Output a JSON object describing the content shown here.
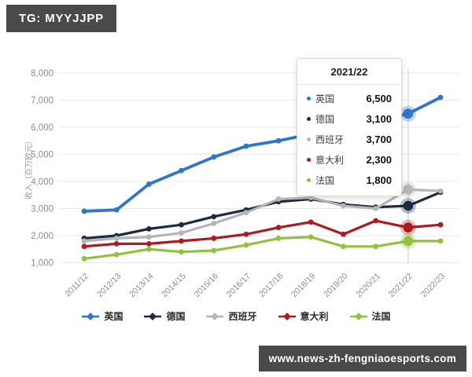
{
  "badge": {
    "text": "TG: MYYJJPP"
  },
  "watermark": {
    "text": "www.news-zh-fengniaoesports.com"
  },
  "tooltip": {
    "title": "2021/22",
    "rows": [
      {
        "label": "英国",
        "value": "6,500"
      },
      {
        "label": "德国",
        "value": "3,100"
      },
      {
        "label": "西班牙",
        "value": "3,700"
      },
      {
        "label": "意大利",
        "value": "2,300"
      },
      {
        "label": "法国",
        "value": "1,800"
      }
    ]
  },
  "chart_data": {
    "type": "line",
    "title": "",
    "xlabel": "",
    "ylabel": "收入（百万欧元）",
    "ylim": [
      1000,
      8000
    ],
    "grid": true,
    "legend_position": "bottom",
    "hover_category": "2021/22",
    "categories": [
      "2011/12",
      "2012/13",
      "2013/14",
      "2014/15",
      "2015/16",
      "2016/17",
      "2017/18",
      "2018/19",
      "2019/20",
      "2020/21",
      "2021/22",
      "2022/23"
    ],
    "yticks": [
      1000,
      2000,
      3000,
      4000,
      5000,
      6000,
      7000,
      8000
    ],
    "ytick_labels": [
      "1,000",
      "2,000",
      "3,000",
      "4,000",
      "5,000",
      "6,000",
      "7,000",
      "8,000"
    ],
    "series": [
      {
        "name": "英国",
        "color": "#2e75cb",
        "values": [
          2900,
          2950,
          3900,
          4400,
          4900,
          5300,
          5500,
          5750,
          6000,
          6250,
          6500,
          7100
        ]
      },
      {
        "name": "德国",
        "color": "#1c2b3f",
        "values": [
          1900,
          2000,
          2250,
          2400,
          2700,
          2950,
          3250,
          3350,
          3150,
          3050,
          3100,
          3600
        ]
      },
      {
        "name": "西班牙",
        "color": "#b5b5b5",
        "values": [
          1800,
          1900,
          1950,
          2100,
          2450,
          2850,
          3350,
          3400,
          3100,
          3000,
          3700,
          3650
        ]
      },
      {
        "name": "意大利",
        "color": "#ad1a20",
        "values": [
          1600,
          1700,
          1700,
          1800,
          1900,
          2050,
          2300,
          2500,
          2050,
          2550,
          2300,
          2400
        ]
      },
      {
        "name": "法国",
        "color": "#93c03d",
        "values": [
          1150,
          1300,
          1500,
          1400,
          1450,
          1650,
          1900,
          1950,
          1600,
          1600,
          1800,
          1800
        ]
      }
    ]
  }
}
